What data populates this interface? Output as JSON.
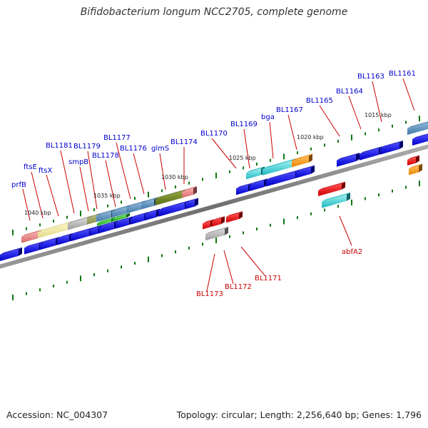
{
  "title": "Bifidobacterium longum NCC2705, complete genome",
  "footer": {
    "accession": "Accession: NC_004307",
    "summary": "Topology: circular; Length: 2,256,640 bp; Genes: 1,796"
  },
  "colors": {
    "forward_label": "#0000cc",
    "reverse_label": "#cc0000",
    "backbone": "#7a7a7a",
    "tick": "#117711"
  },
  "kbp_labels": [
    "1015 kbp",
    "1020 kbp",
    "1025 kbp",
    "1030 kbp",
    "1035 kbp",
    "1040 kbp"
  ],
  "forward_genes": [
    "prfB",
    "ftsE",
    "ftsX",
    "BL1181",
    "smpB",
    "BL1179",
    "BL1178",
    "BL1177",
    "BL1176",
    "glmS",
    "BL1174",
    "BL1170",
    "BL1169",
    "bga",
    "BL1167",
    "BL1165",
    "BL1164",
    "BL1163",
    "BL1161"
  ],
  "reverse_genes": [
    "BL1173",
    "BL1172",
    "BL1171",
    "abfA2"
  ]
}
